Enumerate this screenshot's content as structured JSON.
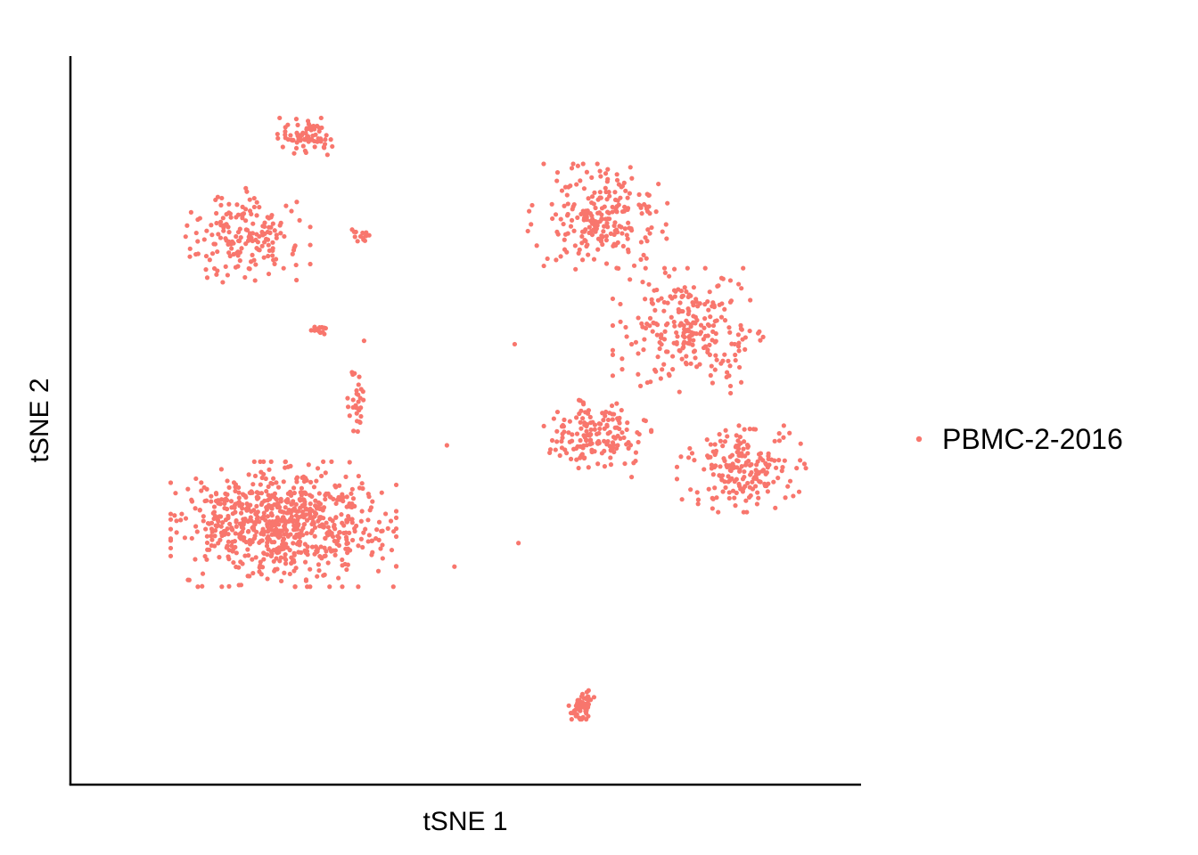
{
  "chart_data": {
    "type": "scatter",
    "title": "",
    "xlabel": "tSNE 1",
    "ylabel": "tSNE 2",
    "xlim": [
      0,
      100
    ],
    "ylim": [
      0,
      100
    ],
    "grid": false,
    "ticks": false,
    "legend": {
      "position": "right",
      "entries": [
        "PBMC-2-2016"
      ]
    },
    "series": [
      {
        "name": "PBMC-2-2016",
        "color": "#F8766D",
        "clusters": [
          {
            "id": "bottom-left-large",
            "center": [
              25.8,
              34.8
            ],
            "spread": [
              10.5,
              6.5
            ],
            "count": 760
          },
          {
            "id": "upper-left",
            "center": [
              20.8,
              77.5
            ],
            "spread": [
              6.0,
              5.0
            ],
            "count": 180
          },
          {
            "id": "top-small",
            "center": [
              29.0,
              92.2
            ],
            "spread": [
              2.8,
              2.0
            ],
            "count": 75
          },
          {
            "id": "small-center-left",
            "center": [
              36.4,
              77.7
            ],
            "spread": [
              1.1,
              0.7
            ],
            "count": 14
          },
          {
            "id": "tiny-left",
            "center": [
              30.5,
              63.5
            ],
            "spread": [
              0.9,
              0.6
            ],
            "count": 14
          },
          {
            "id": "stalk-left",
            "center": [
              35.4,
              52.5
            ],
            "spread": [
              0.9,
              4.0
            ],
            "count": 30
          },
          {
            "id": "right-top",
            "center": [
              67.5,
              80.4
            ],
            "spread": [
              6.5,
              5.5
            ],
            "count": 230
          },
          {
            "id": "right-middle",
            "center": [
              79.5,
              63.5
            ],
            "spread": [
              7.0,
              6.5
            ],
            "count": 250
          },
          {
            "id": "right-lower-left",
            "center": [
              67.5,
              47.5
            ],
            "spread": [
              5.0,
              4.0
            ],
            "count": 160
          },
          {
            "id": "right-lower-right",
            "center": [
              86.6,
              43.0
            ],
            "spread": [
              6.0,
              4.5
            ],
            "count": 200
          },
          {
            "id": "bottom-small",
            "center": [
              65.4,
              8.0
            ],
            "spread": [
              1.2,
              1.5
            ],
            "count": 60
          }
        ],
        "outliers": [
          [
            57.0,
            32.0
          ],
          [
            56.5,
            61.5
          ],
          [
            47.5,
            46.5
          ],
          [
            48.5,
            28.5
          ],
          [
            36.5,
            62.0
          ]
        ]
      }
    ]
  }
}
